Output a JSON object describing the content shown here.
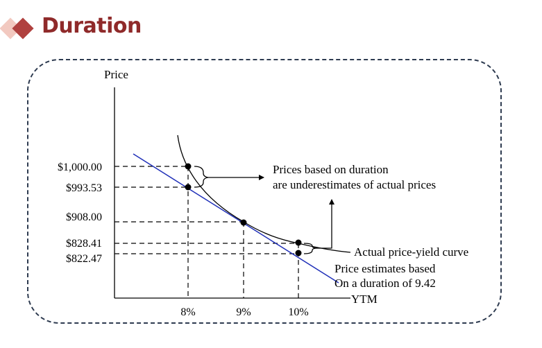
{
  "header": {
    "title": "Duration",
    "accent_color": "#8f2a2a",
    "icon": "diamond-bullet-icon"
  },
  "diagram": {
    "y_axis_label": "Price",
    "x_axis_label": "YTM",
    "price_labels": [
      "$1,000.00",
      "$993.53",
      "$908.00",
      "$828.41",
      "$822.47"
    ],
    "yield_labels": [
      "8%",
      "9%",
      "10%"
    ],
    "annotation_underestimate_line1": "Prices based on duration",
    "annotation_underestimate_line2": "are underestimates of actual prices",
    "annotation_curve": "Actual price-yield curve",
    "annotation_estimate_line1": "Price estimates based",
    "annotation_estimate_line2": "On a duration of 9.42",
    "tangent_color": "#1f2fb8"
  }
}
